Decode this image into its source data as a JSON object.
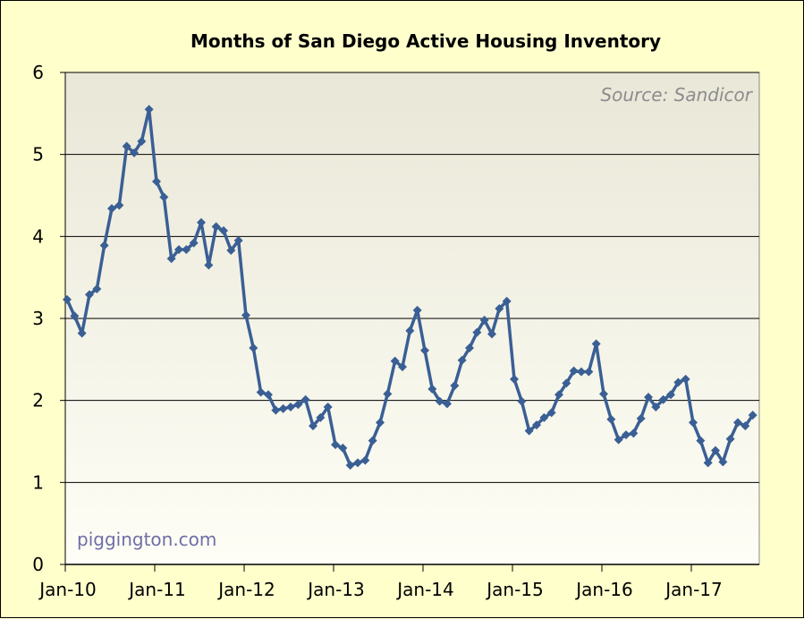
{
  "chart_data": {
    "type": "line",
    "title": "Months of San Diego Active Housing Inventory",
    "source_note": "Source: Sandicor",
    "credit": "piggington.com",
    "xlabel": "",
    "ylabel": "",
    "ylim": [
      0,
      6
    ],
    "yticks": [
      "0",
      "1",
      "2",
      "3",
      "4",
      "5",
      "6"
    ],
    "xticks": [
      "Jan-10",
      "Jan-11",
      "Jan-12",
      "Jan-13",
      "Jan-14",
      "Jan-15",
      "Jan-16",
      "Jan-17"
    ],
    "grid": true,
    "colors": {
      "line": "#3a5f94",
      "marker": "#3a5f94",
      "grid": "#000000"
    },
    "series": [
      {
        "start": "Jan-10",
        "frequency": "monthly",
        "values": [
          3.23,
          3.03,
          2.82,
          3.29,
          3.36,
          3.89,
          4.34,
          4.38,
          5.1,
          5.02,
          5.16,
          5.55,
          4.67,
          4.48,
          3.73,
          3.84,
          3.84,
          3.92,
          4.17,
          3.65,
          4.12,
          4.07,
          3.83,
          3.95,
          3.04,
          2.64,
          2.1,
          2.07,
          1.88,
          1.9,
          1.92,
          1.95,
          2.01,
          1.69,
          1.79,
          1.92,
          1.46,
          1.42,
          1.21,
          1.24,
          1.27,
          1.51,
          1.73,
          2.08,
          2.48,
          2.41,
          2.85,
          3.1,
          2.61,
          2.14,
          1.99,
          1.96,
          2.18,
          2.49,
          2.64,
          2.83,
          2.98,
          2.81,
          3.12,
          3.21,
          2.26,
          1.99,
          1.63,
          1.7,
          1.79,
          1.85,
          2.07,
          2.21,
          2.36,
          2.35,
          2.35,
          2.69,
          2.08,
          1.77,
          1.52,
          1.58,
          1.6,
          1.78,
          2.04,
          1.92,
          2.01,
          2.07,
          2.22,
          2.26,
          1.73,
          1.51,
          1.24,
          1.39,
          1.25,
          1.53,
          1.73,
          1.69,
          1.82
        ]
      }
    ]
  }
}
